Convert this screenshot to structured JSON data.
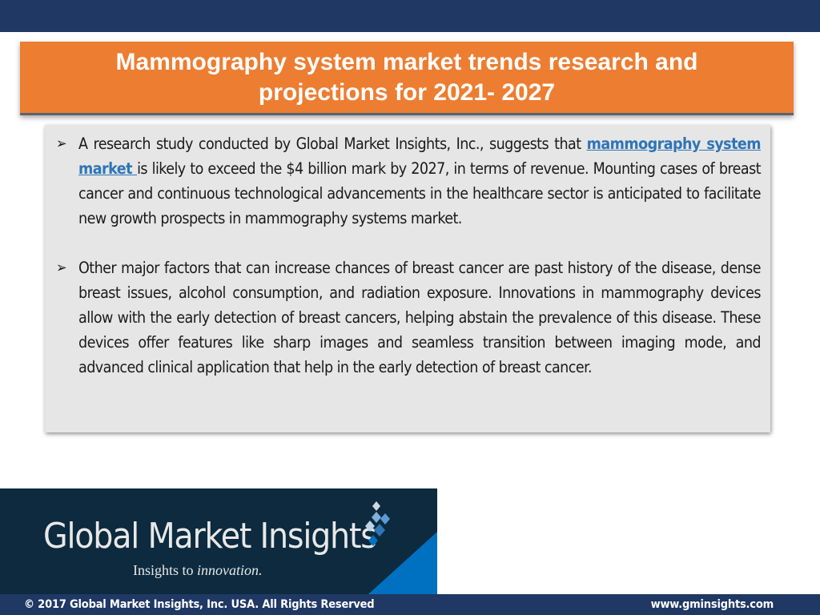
{
  "slide": {
    "title": "Mammography system market trends research and projections for 2021- 2027",
    "bullets": [
      {
        "prefix": "A research study conducted by Global Market Insights, Inc., suggests that ",
        "link_text": "mammography system market ",
        "suffix": "is likely to exceed the $4  billion mark by 2027, in terms of revenue. Mounting cases of breast cancer and continuous technological advancements in the healthcare sector is anticipated to facilitate new growth prospects in mammography systems market."
      },
      {
        "text": "Other major factors that can increase chances of breast cancer are past history of the disease, dense breast issues, alcohol consumption, and radiation exposure. Innovations in mammography devices allow with the early detection of breast cancers, helping abstain the prevalence of this disease. These devices offer features like sharp images and seamless transition between imaging mode, and advanced clinical application that help in the early detection of breast cancer."
      }
    ],
    "bullet_icon": "arrow-bullet-icon"
  },
  "logo": {
    "name": "Global Market Insights",
    "tagline_prefix": "Insights to ",
    "tagline_italic": "innovation."
  },
  "footer": {
    "copyright": "© 2017 Global Market Insights, Inc. USA. All Rights Reserved",
    "website": "www.gminsights.com"
  },
  "colors": {
    "navy": "#1f3864",
    "orange": "#ed7d31",
    "content_bg": "#e7e6e6",
    "link": "#2e75b6",
    "logo_bg": "#0d2a3e",
    "logo_accent": "#0070c0"
  }
}
